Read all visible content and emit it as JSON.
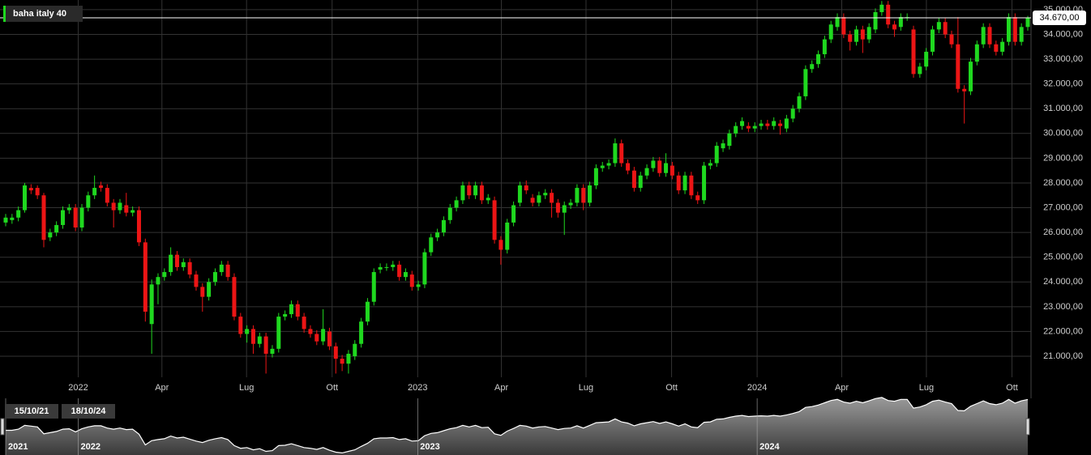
{
  "chart_data": {
    "type": "candlestick",
    "title": "baha italy 40",
    "up_color": "#1fd81f",
    "down_color": "#ec1515",
    "ylim": [
      20150,
      35390
    ],
    "yticks": [
      {
        "value": 21000,
        "label": "21.000,00"
      },
      {
        "value": 22000,
        "label": "22.000,00"
      },
      {
        "value": 23000,
        "label": "23.000,00"
      },
      {
        "value": 24000,
        "label": "24.000,00"
      },
      {
        "value": 25000,
        "label": "25.000,00"
      },
      {
        "value": 26000,
        "label": "26.000,00"
      },
      {
        "value": 27000,
        "label": "27.000,00"
      },
      {
        "value": 28000,
        "label": "28.000,00"
      },
      {
        "value": 29000,
        "label": "29.000,00"
      },
      {
        "value": 30000,
        "label": "30.000,00"
      },
      {
        "value": 31000,
        "label": "31.000,00"
      },
      {
        "value": 32000,
        "label": "32.000,00"
      },
      {
        "value": 33000,
        "label": "33.000,00"
      },
      {
        "value": 34000,
        "label": "34.000,00"
      },
      {
        "value": 35000,
        "label": "35.000,00"
      }
    ],
    "xlim": [
      {
        "value": "2021-10-15",
        "label": "15/10/21"
      },
      {
        "value": "2024-10-18",
        "label": "18/10/24"
      }
    ],
    "xticks": [
      {
        "value": "2022-01-01",
        "label": "2022"
      },
      {
        "value": "2022-04-01",
        "label": "Apr"
      },
      {
        "value": "2022-07-01",
        "label": "Lug"
      },
      {
        "value": "2022-10-01",
        "label": "Ott"
      },
      {
        "value": "2023-01-01",
        "label": "2023"
      },
      {
        "value": "2023-04-01",
        "label": "Apr"
      },
      {
        "value": "2023-07-01",
        "label": "Lug"
      },
      {
        "value": "2023-10-01",
        "label": "Ott"
      },
      {
        "value": "2024-01-01",
        "label": "2024"
      },
      {
        "value": "2024-04-01",
        "label": "Apr"
      },
      {
        "value": "2024-07-01",
        "label": "Lug"
      },
      {
        "value": "2024-10-01",
        "label": "Ott"
      }
    ],
    "nav_xticks": [
      {
        "value": "2021-10-15",
        "label": "2021"
      },
      {
        "value": "2022-01-01",
        "label": "2022"
      },
      {
        "value": "2023-01-01",
        "label": "2023"
      },
      {
        "value": "2024-01-01",
        "label": "2024"
      }
    ],
    "last_price": {
      "value": 34670,
      "label": "34.670,00"
    },
    "ohlc": [
      [
        26400,
        26750,
        26250,
        26600
      ],
      [
        26500,
        26750,
        26350,
        26600
      ],
      [
        26600,
        27050,
        26450,
        26900
      ],
      [
        26900,
        28000,
        26800,
        27900
      ],
      [
        27800,
        27950,
        27550,
        27700
      ],
      [
        27800,
        27900,
        27350,
        27500
      ],
      [
        27500,
        27600,
        25400,
        25700
      ],
      [
        25800,
        26150,
        25650,
        26000
      ],
      [
        26000,
        26450,
        25850,
        26300
      ],
      [
        26300,
        27050,
        26150,
        26900
      ],
      [
        26900,
        27150,
        26750,
        27000
      ],
      [
        27000,
        27150,
        26050,
        26200
      ],
      [
        26200,
        27150,
        26050,
        27000
      ],
      [
        27000,
        27650,
        26850,
        27500
      ],
      [
        27500,
        28300,
        27350,
        27800
      ],
      [
        27900,
        28050,
        27650,
        27800
      ],
      [
        27800,
        27950,
        27050,
        27200
      ],
      [
        27200,
        27350,
        26200,
        26900
      ],
      [
        26900,
        27350,
        26750,
        27200
      ],
      [
        27100,
        27600,
        26650,
        26800
      ],
      [
        26800,
        27050,
        26650,
        26900
      ],
      [
        26900,
        27050,
        25450,
        25600
      ],
      [
        25600,
        25750,
        22400,
        22800
      ],
      [
        22300,
        24100,
        21100,
        23900
      ],
      [
        23900,
        24350,
        23100,
        24200
      ],
      [
        24200,
        24550,
        24050,
        24400
      ],
      [
        24400,
        25400,
        24250,
        25100
      ],
      [
        25100,
        25250,
        24450,
        24600
      ],
      [
        24600,
        24950,
        24450,
        24800
      ],
      [
        24800,
        24950,
        24150,
        24300
      ],
      [
        24300,
        24450,
        23650,
        23800
      ],
      [
        23800,
        23950,
        22800,
        23400
      ],
      [
        23400,
        24150,
        23250,
        24000
      ],
      [
        24000,
        24550,
        23850,
        24400
      ],
      [
        24400,
        24850,
        24250,
        24700
      ],
      [
        24700,
        24850,
        24050,
        24200
      ],
      [
        24200,
        24350,
        22450,
        22600
      ],
      [
        22600,
        22750,
        21750,
        21900
      ],
      [
        21900,
        22250,
        21550,
        22100
      ],
      [
        22100,
        22250,
        21100,
        21500
      ],
      [
        21500,
        21950,
        21350,
        21800
      ],
      [
        21800,
        21950,
        20300,
        21100
      ],
      [
        21100,
        21450,
        20950,
        21300
      ],
      [
        21300,
        22750,
        21150,
        22600
      ],
      [
        22600,
        22850,
        22450,
        22700
      ],
      [
        22700,
        23250,
        22550,
        23100
      ],
      [
        23100,
        23250,
        22450,
        22600
      ],
      [
        22600,
        22750,
        21950,
        22100
      ],
      [
        22100,
        22250,
        21750,
        21900
      ],
      [
        21900,
        22050,
        21450,
        21600
      ],
      [
        21600,
        22900,
        21450,
        22100
      ],
      [
        22000,
        22150,
        21250,
        21400
      ],
      [
        21400,
        21550,
        20300,
        20900
      ],
      [
        20900,
        21050,
        20400,
        20700
      ],
      [
        20700,
        21250,
        20300,
        21100
      ],
      [
        21000,
        21650,
        20850,
        21500
      ],
      [
        21500,
        22550,
        21350,
        22400
      ],
      [
        22400,
        23350,
        22250,
        23200
      ],
      [
        23200,
        24550,
        23050,
        24400
      ],
      [
        24500,
        24750,
        24350,
        24600
      ],
      [
        24600,
        24750,
        24450,
        24600
      ],
      [
        24600,
        24850,
        24450,
        24700
      ],
      [
        24700,
        24850,
        24050,
        24200
      ],
      [
        24200,
        24550,
        24050,
        24400
      ],
      [
        24300,
        24450,
        23650,
        23800
      ],
      [
        23800,
        24050,
        23650,
        23900
      ],
      [
        23900,
        25350,
        23750,
        25200
      ],
      [
        25200,
        25950,
        25050,
        25800
      ],
      [
        25800,
        26150,
        25650,
        26000
      ],
      [
        26000,
        26650,
        25850,
        26500
      ],
      [
        26500,
        27150,
        26350,
        27000
      ],
      [
        27000,
        27450,
        26850,
        27300
      ],
      [
        27300,
        28050,
        27150,
        27900
      ],
      [
        27900,
        28050,
        27350,
        27500
      ],
      [
        27500,
        28050,
        27350,
        27900
      ],
      [
        27900,
        28050,
        27150,
        27300
      ],
      [
        27300,
        27550,
        27150,
        27400
      ],
      [
        27300,
        27450,
        25550,
        25700
      ],
      [
        25700,
        25850,
        24700,
        25300
      ],
      [
        25300,
        26550,
        25150,
        26400
      ],
      [
        26400,
        27250,
        26250,
        27100
      ],
      [
        27200,
        28050,
        27050,
        27900
      ],
      [
        27900,
        28100,
        27550,
        27700
      ],
      [
        27400,
        27550,
        27050,
        27200
      ],
      [
        27200,
        27650,
        27050,
        27500
      ],
      [
        27500,
        27750,
        27350,
        27600
      ],
      [
        27600,
        27750,
        26600,
        27200
      ],
      [
        27200,
        27350,
        26600,
        26800
      ],
      [
        26800,
        27250,
        25900,
        27100
      ],
      [
        27100,
        27350,
        26950,
        27200
      ],
      [
        27200,
        27950,
        27050,
        27800
      ],
      [
        27800,
        27950,
        26900,
        27200
      ],
      [
        27200,
        28050,
        27050,
        27900
      ],
      [
        27900,
        28750,
        27750,
        28600
      ],
      [
        28600,
        28850,
        28450,
        28700
      ],
      [
        28700,
        28950,
        28550,
        28800
      ],
      [
        28800,
        29800,
        28650,
        29600
      ],
      [
        29600,
        29750,
        28650,
        28800
      ],
      [
        28800,
        28950,
        28350,
        28500
      ],
      [
        28500,
        28650,
        27650,
        27800
      ],
      [
        27800,
        28450,
        27650,
        28300
      ],
      [
        28300,
        28750,
        28150,
        28600
      ],
      [
        28600,
        29050,
        28450,
        28900
      ],
      [
        28900,
        29050,
        28250,
        28400
      ],
      [
        28400,
        29200,
        28250,
        28800
      ],
      [
        28700,
        28850,
        28150,
        28300
      ],
      [
        28300,
        28450,
        27550,
        27700
      ],
      [
        27700,
        28450,
        27550,
        28300
      ],
      [
        28300,
        28450,
        27350,
        27500
      ],
      [
        27500,
        27650,
        27150,
        27300
      ],
      [
        27300,
        28850,
        27150,
        28700
      ],
      [
        28700,
        28950,
        28550,
        28800
      ],
      [
        28800,
        29650,
        28650,
        29500
      ],
      [
        29400,
        29750,
        29250,
        29600
      ],
      [
        29500,
        30150,
        29350,
        30000
      ],
      [
        30000,
        30450,
        29850,
        30300
      ],
      [
        30300,
        30650,
        30150,
        30500
      ],
      [
        30300,
        30450,
        30050,
        30200
      ],
      [
        30200,
        30450,
        30050,
        30300
      ],
      [
        30300,
        30550,
        30150,
        30400
      ],
      [
        30400,
        30550,
        30150,
        30300
      ],
      [
        30300,
        30650,
        30150,
        30500
      ],
      [
        30400,
        30550,
        29950,
        30300
      ],
      [
        30200,
        30750,
        30050,
        30600
      ],
      [
        30600,
        31150,
        30450,
        31000
      ],
      [
        31000,
        31650,
        30850,
        31500
      ],
      [
        31500,
        32750,
        31350,
        32600
      ],
      [
        32600,
        32950,
        32450,
        32800
      ],
      [
        32800,
        33350,
        32650,
        33200
      ],
      [
        33200,
        33950,
        33050,
        33800
      ],
      [
        33800,
        34550,
        33650,
        34400
      ],
      [
        34300,
        34850,
        34150,
        34700
      ],
      [
        34700,
        34850,
        33850,
        34000
      ],
      [
        34000,
        34150,
        33350,
        33700
      ],
      [
        33700,
        34350,
        33550,
        34200
      ],
      [
        34200,
        34350,
        33250,
        33800
      ],
      [
        33800,
        34450,
        33650,
        34300
      ],
      [
        34200,
        35050,
        34050,
        34900
      ],
      [
        34900,
        35350,
        34750,
        35200
      ],
      [
        35200,
        35350,
        34250,
        34400
      ],
      [
        34400,
        34550,
        33900,
        34200
      ],
      [
        34300,
        34850,
        34150,
        34700
      ],
      [
        34700,
        34850,
        34550,
        34700
      ],
      [
        34200,
        34350,
        32250,
        32400
      ],
      [
        32400,
        32850,
        32250,
        32700
      ],
      [
        32700,
        33450,
        32550,
        33300
      ],
      [
        33300,
        34350,
        33150,
        34200
      ],
      [
        34200,
        34650,
        34050,
        34500
      ],
      [
        34500,
        34650,
        33850,
        34000
      ],
      [
        34000,
        34150,
        33450,
        33600
      ],
      [
        33600,
        34700,
        31650,
        31800
      ],
      [
        31800,
        31950,
        30400,
        31700
      ],
      [
        31700,
        33050,
        31550,
        32900
      ],
      [
        32900,
        33750,
        32750,
        33600
      ],
      [
        33600,
        34450,
        33450,
        34300
      ],
      [
        34300,
        34450,
        33450,
        33600
      ],
      [
        33600,
        33750,
        33150,
        33300
      ],
      [
        33300,
        33850,
        33150,
        33700
      ],
      [
        33700,
        34850,
        33550,
        34700
      ],
      [
        34700,
        34850,
        33550,
        33700
      ],
      [
        33700,
        34450,
        33550,
        34300
      ],
      [
        34300,
        34750,
        34150,
        34670
      ]
    ]
  }
}
